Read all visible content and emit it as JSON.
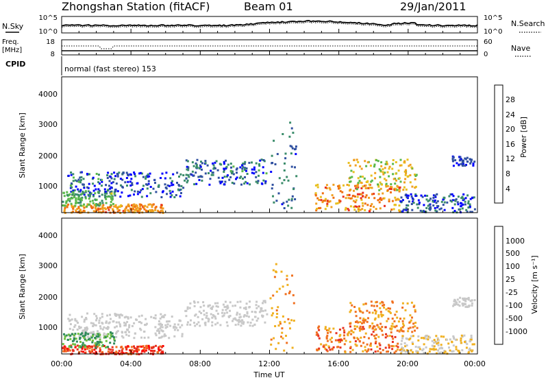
{
  "header": {
    "title": "Zhongshan Station (fitACF)",
    "beam": "Beam 01",
    "date": "29/Jan/2011"
  },
  "noise_panel": {
    "left_label": "N.Sky",
    "right_label": "N.Search",
    "left_ticks": [
      "10^5",
      "10^0"
    ],
    "right_ticks": [
      "10^5",
      "10^0"
    ]
  },
  "freq_panel": {
    "left_label_top": "Freq.",
    "left_label_unit": "[MHz]",
    "right_label": "Nave",
    "left_ticks": [
      "18",
      "8"
    ],
    "right_ticks": [
      "60",
      "0"
    ]
  },
  "cpid": {
    "label": "CPID",
    "text": "normal (fast stereo) 153"
  },
  "colors": {
    "power_scale": [
      "#0000ff",
      "#3050a0",
      "#3a8c6a",
      "#5ab84a",
      "#e8c020",
      "#f0a020",
      "#f07010",
      "#e83020",
      "#ff0000"
    ],
    "velocity_scale": [
      "#1e2aa8",
      "#3060c0",
      "#2e8a5a",
      "#70c040",
      "#c8c8c8",
      "#c8c8c8",
      "#f0b020",
      "#f07020",
      "#e83020",
      "#ff0000"
    ]
  },
  "chart_data": [
    {
      "type": "heatmap",
      "name": "power",
      "ylabel": "Slant Range [km]",
      "ylim": [
        180,
        4500
      ],
      "yticks": [
        "4000",
        "3000",
        "2000",
        "1000"
      ],
      "colorbar_label": "Power [dB]",
      "colorbar_ticks": [
        "28",
        "24",
        "20",
        "16",
        "12",
        "8",
        "4"
      ],
      "colorbar_range": [
        0,
        32
      ]
    },
    {
      "type": "heatmap",
      "name": "velocity",
      "ylabel": "Slant Range [km]",
      "ylim": [
        180,
        4500
      ],
      "yticks": [
        "4000",
        "3000",
        "2000",
        "1000"
      ],
      "colorbar_label": "Velocity [m s⁻¹]",
      "colorbar_ticks": [
        "1000",
        "500",
        "100",
        "25",
        "-25",
        "-100",
        "-500",
        "-1000"
      ]
    }
  ],
  "time_axis": {
    "label": "Time UT",
    "xlim_hours": [
      0,
      24
    ],
    "ticks": [
      "00:00",
      "04:00",
      "08:00",
      "12:00",
      "16:00",
      "20:00",
      "00:00"
    ]
  }
}
